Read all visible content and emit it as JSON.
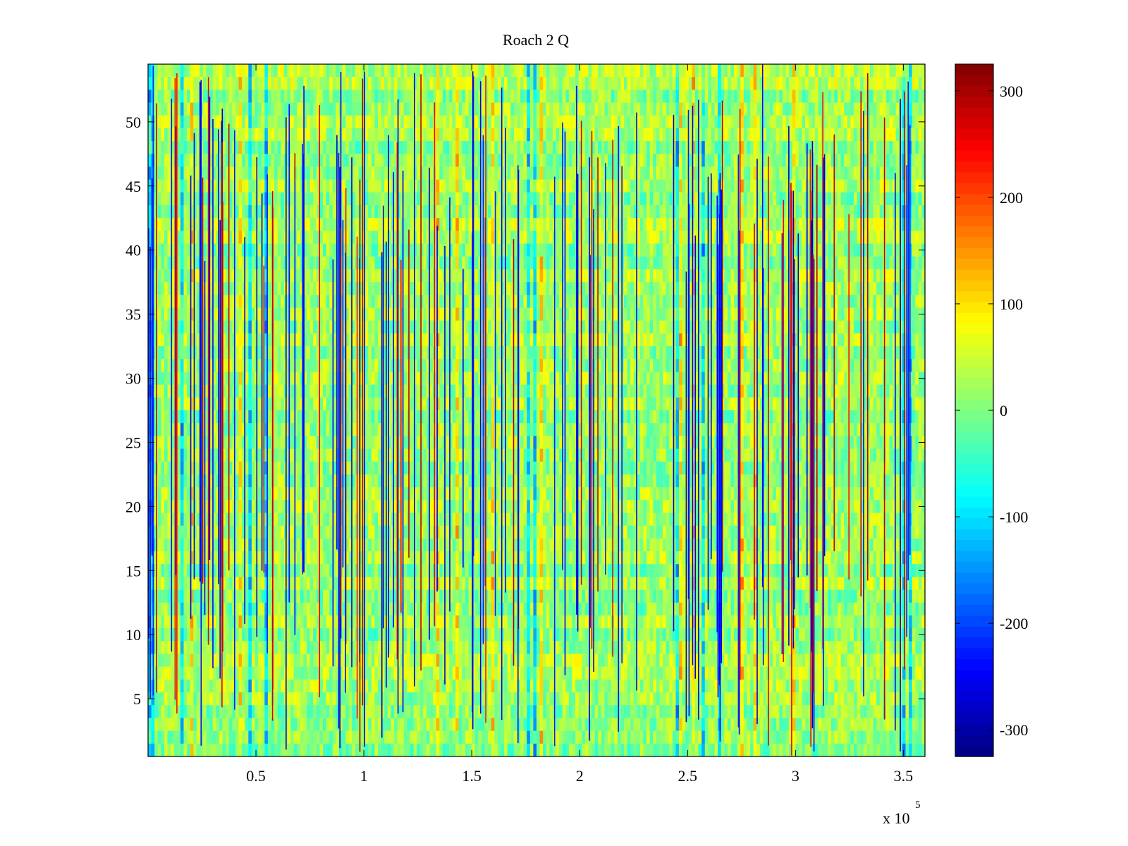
{
  "chart_data": {
    "type": "heatmap",
    "title": "Roach 2 Q",
    "xlabel": "",
    "ylabel": "",
    "x_exponent_label": "x 10",
    "x_exponent_power": "5",
    "xlim": [
      0,
      360000
    ],
    "ylim": [
      0.5,
      54.5
    ],
    "x_ticks": [
      {
        "value": 50000,
        "label": "0.5"
      },
      {
        "value": 100000,
        "label": "1"
      },
      {
        "value": 150000,
        "label": "1.5"
      },
      {
        "value": 200000,
        "label": "2"
      },
      {
        "value": 250000,
        "label": "2.5"
      },
      {
        "value": 300000,
        "label": "3"
      },
      {
        "value": 350000,
        "label": "3.5"
      }
    ],
    "y_ticks": [
      {
        "value": 5,
        "label": "5"
      },
      {
        "value": 10,
        "label": "10"
      },
      {
        "value": 15,
        "label": "15"
      },
      {
        "value": 20,
        "label": "20"
      },
      {
        "value": 25,
        "label": "25"
      },
      {
        "value": 30,
        "label": "30"
      },
      {
        "value": 35,
        "label": "35"
      },
      {
        "value": 40,
        "label": "40"
      },
      {
        "value": 45,
        "label": "45"
      },
      {
        "value": 50,
        "label": "50"
      }
    ],
    "colorbar": {
      "colormap": "jet",
      "clim": [
        -325,
        325
      ],
      "ticks": [
        {
          "value": -300,
          "label": "-300"
        },
        {
          "value": -200,
          "label": "-200"
        },
        {
          "value": -100,
          "label": "-100"
        },
        {
          "value": 0,
          "label": "0"
        },
        {
          "value": 100,
          "label": "100"
        },
        {
          "value": 200,
          "label": "200"
        },
        {
          "value": 300,
          "label": "300"
        }
      ]
    },
    "rows": 54,
    "background_level": 20,
    "grid": false
  }
}
